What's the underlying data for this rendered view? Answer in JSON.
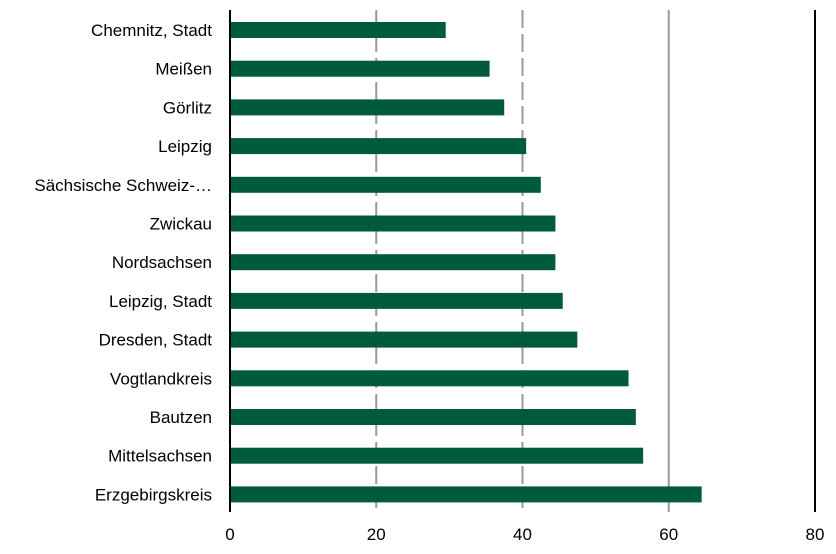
{
  "chart_data": {
    "type": "bar",
    "orientation": "horizontal",
    "categories": [
      "Chemnitz, Stadt",
      "Meißen",
      "Görlitz",
      "Leipzig",
      "Sächsische Schweiz-…",
      "Zwickau",
      "Nordsachsen",
      "Leipzig, Stadt",
      "Dresden, Stadt",
      "Vogtlandkreis",
      "Bautzen",
      "Mittelsachsen",
      "Erzgebirgskreis"
    ],
    "values": [
      29.5,
      35.5,
      37.5,
      40.5,
      42.5,
      44.5,
      44.5,
      45.5,
      47.5,
      54.5,
      55.5,
      56.5,
      64.5
    ],
    "xlim": [
      0,
      80
    ],
    "xticks": [
      0,
      20,
      40,
      60,
      80
    ],
    "title": "",
    "xlabel": "",
    "ylabel": "",
    "grid": true,
    "bar_color": "#005a3c",
    "grid_color": "#999999",
    "axis_color": "#000000"
  }
}
